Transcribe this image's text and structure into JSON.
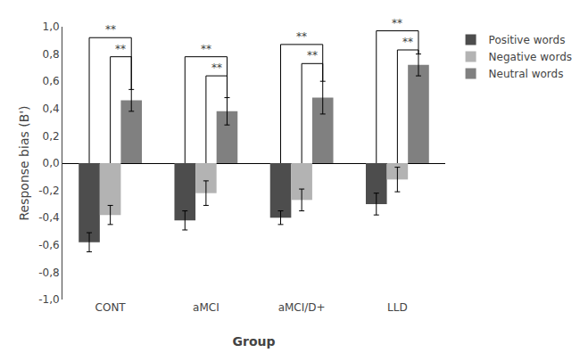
{
  "chart_data": {
    "type": "bar",
    "xlabel": "Group",
    "ylabel": "Response bias (B')",
    "categories": [
      "CONT",
      "aMCI",
      "aMCI/D+",
      "LLD"
    ],
    "series": [
      {
        "name": "Positive words",
        "color": "#4d4d4d",
        "values": [
          -0.58,
          -0.42,
          -0.4,
          -0.3
        ],
        "errors": [
          0.07,
          0.07,
          0.05,
          0.08
        ]
      },
      {
        "name": "Negative words",
        "color": "#b3b3b3",
        "values": [
          -0.38,
          -0.22,
          -0.27,
          -0.12
        ],
        "errors": [
          0.07,
          0.09,
          0.08,
          0.09
        ]
      },
      {
        "name": "Neutral words",
        "color": "#808080",
        "values": [
          0.46,
          0.38,
          0.48,
          0.72
        ],
        "errors": [
          0.08,
          0.1,
          0.12,
          0.08
        ]
      }
    ],
    "ylim": [
      -1.0,
      1.0
    ],
    "yticks": [
      {
        "value": -1.0,
        "label": "-1,0"
      },
      {
        "value": -0.8,
        "label": "-0,8"
      },
      {
        "value": -0.6,
        "label": "-0,6"
      },
      {
        "value": -0.4,
        "label": "-0,4"
      },
      {
        "value": -0.2,
        "label": "-0,2"
      },
      {
        "value": 0.0,
        "label": "0,0"
      },
      {
        "value": 0.2,
        "label": "0,2"
      },
      {
        "value": 0.4,
        "label": "0,4"
      },
      {
        "value": 0.6,
        "label": "0,6"
      },
      {
        "value": 0.8,
        "label": "0,8"
      },
      {
        "value": 1.0,
        "label": "1,0"
      }
    ],
    "grid": false,
    "legend": "right",
    "annotations": [
      {
        "category": "CONT",
        "from": "Positive words",
        "to": "Neutral words",
        "y": 0.92,
        "label": "**"
      },
      {
        "category": "CONT",
        "from": "Negative words",
        "to": "Neutral words",
        "y": 0.78,
        "label": "**"
      },
      {
        "category": "aMCI",
        "from": "Positive words",
        "to": "Neutral words",
        "y": 0.78,
        "label": "**"
      },
      {
        "category": "aMCI",
        "from": "Negative words",
        "to": "Neutral words",
        "y": 0.64,
        "label": "**"
      },
      {
        "category": "aMCI/D+",
        "from": "Positive words",
        "to": "Neutral words",
        "y": 0.87,
        "label": "**"
      },
      {
        "category": "aMCI/D+",
        "from": "Negative words",
        "to": "Neutral words",
        "y": 0.73,
        "label": "**"
      },
      {
        "category": "LLD",
        "from": "Positive words",
        "to": "Neutral words",
        "y": 0.97,
        "label": "**"
      },
      {
        "category": "LLD",
        "from": "Negative words",
        "to": "Neutral words",
        "y": 0.83,
        "label": "**"
      }
    ]
  }
}
